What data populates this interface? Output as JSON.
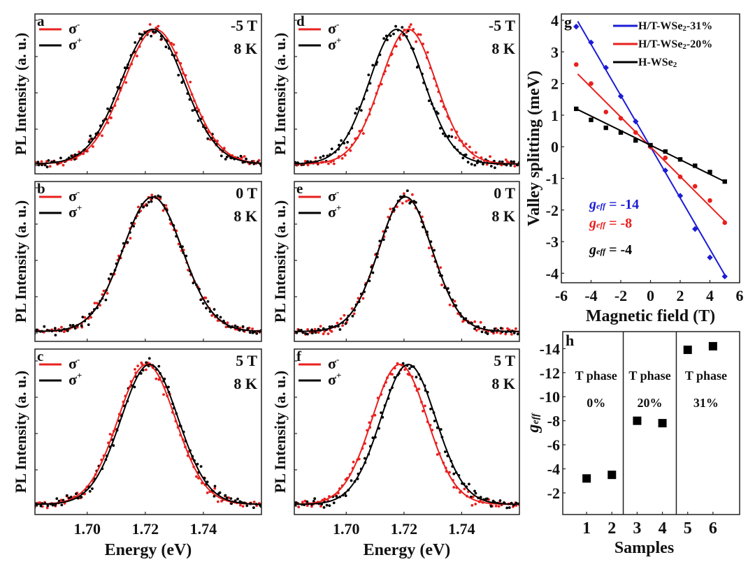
{
  "figure": {
    "pl_panels_common": {
      "ylabel": "PL Intensity (a. u.)",
      "xlabel": "Energy (eV)",
      "xticks": [
        "1.70",
        "1.72",
        "1.74"
      ],
      "xlim": [
        1.682,
        1.76
      ],
      "legend": [
        {
          "label": "σ-",
          "sup": "-",
          "base": "σ",
          "color": "#e8201e"
        },
        {
          "label": "σ+",
          "sup": "+",
          "base": "σ",
          "color": "#000000"
        }
      ]
    }
  },
  "chart_data": [
    {
      "type": "line",
      "panel": "a",
      "field": "-5 T",
      "temp": "8 K",
      "title_label": "a",
      "series": [
        {
          "name": "σ-",
          "center_eV": 1.7235,
          "width_eV": 0.0165,
          "color": "#e8201e"
        },
        {
          "name": "σ+",
          "center_eV": 1.7225,
          "width_eV": 0.0165,
          "color": "#000000"
        }
      ],
      "xlabel": "",
      "ylabel": "PL Intensity (a. u.)",
      "xlim": [
        1.682,
        1.76
      ]
    },
    {
      "type": "line",
      "panel": "b",
      "field": "0 T",
      "temp": "8 K",
      "title_label": "b",
      "series": [
        {
          "name": "σ-",
          "center_eV": 1.7225,
          "width_eV": 0.0155,
          "color": "#e8201e"
        },
        {
          "name": "σ+",
          "center_eV": 1.7225,
          "width_eV": 0.0155,
          "color": "#000000"
        }
      ],
      "xlabel": "",
      "ylabel": "PL Intensity (a. u.)",
      "xlim": [
        1.682,
        1.76
      ]
    },
    {
      "type": "line",
      "panel": "c",
      "field": "5 T",
      "temp": "8 K",
      "title_label": "c",
      "series": [
        {
          "name": "σ-",
          "center_eV": 1.7205,
          "width_eV": 0.015,
          "color": "#e8201e"
        },
        {
          "name": "σ+",
          "center_eV": 1.7215,
          "width_eV": 0.015,
          "color": "#000000"
        }
      ],
      "xlabel": "Energy (eV)",
      "ylabel": "PL Intensity (a. u.)",
      "xlim": [
        1.682,
        1.76
      ],
      "xticks": [
        "1.70",
        "1.72",
        "1.74"
      ]
    },
    {
      "type": "line",
      "panel": "d",
      "field": "-5 T",
      "temp": "8 K",
      "title_label": "d",
      "series": [
        {
          "name": "σ-",
          "center_eV": 1.7215,
          "width_eV": 0.0145,
          "color": "#e8201e"
        },
        {
          "name": "σ+",
          "center_eV": 1.7175,
          "width_eV": 0.0145,
          "color": "#000000"
        }
      ],
      "xlabel": "",
      "ylabel": "PL Intensity (a. u.)",
      "xlim": [
        1.682,
        1.76
      ]
    },
    {
      "type": "line",
      "panel": "e",
      "field": "0 T",
      "temp": "8 K",
      "title_label": "e",
      "series": [
        {
          "name": "σ-",
          "center_eV": 1.7205,
          "width_eV": 0.014,
          "color": "#e8201e"
        },
        {
          "name": "σ+",
          "center_eV": 1.7205,
          "width_eV": 0.014,
          "color": "#000000"
        }
      ],
      "xlabel": "",
      "ylabel": "PL Intensity (a. u.)",
      "xlim": [
        1.682,
        1.76
      ]
    },
    {
      "type": "line",
      "panel": "f",
      "field": "5 T",
      "temp": "8 K",
      "title_label": "f",
      "series": [
        {
          "name": "σ-",
          "center_eV": 1.7185,
          "width_eV": 0.0145,
          "color": "#e8201e"
        },
        {
          "name": "σ+",
          "center_eV": 1.7215,
          "width_eV": 0.0145,
          "color": "#000000"
        }
      ],
      "xlabel": "Energy (eV)",
      "ylabel": "PL Intensity (a. u.)",
      "xlim": [
        1.682,
        1.76
      ],
      "xticks": [
        "1.70",
        "1.72",
        "1.74"
      ]
    },
    {
      "type": "scatter",
      "panel": "g",
      "title_label": "g",
      "xlabel": "Magnetic field (T)",
      "ylabel": "Valley splitting (meV)",
      "xlim": [
        -6,
        6
      ],
      "ylim": [
        -4.3,
        4.2
      ],
      "xticks": [
        -6,
        -4,
        -2,
        0,
        2,
        4,
        6
      ],
      "yticks": [
        -4,
        -3,
        -2,
        -1,
        0,
        1,
        2,
        3,
        4
      ],
      "x": [
        -5,
        -4,
        -3,
        -2,
        -1,
        0,
        1,
        2,
        3,
        4,
        5
      ],
      "series": [
        {
          "name": "H/T-WSe2-31%",
          "base": "H/T-WSe",
          "sub": "2",
          "suffix": "-31%",
          "color": "#1c1cd6",
          "marker": "diamond",
          "values": [
            3.8,
            3.3,
            2.5,
            1.6,
            0.8,
            0.0,
            -0.75,
            -1.55,
            -2.6,
            -3.5,
            -4.1
          ],
          "fit": {
            "slope": -0.81,
            "intercept": 0.0
          },
          "geff": "-14"
        },
        {
          "name": "H/T-WSe2-20%",
          "base": "H/T-WSe",
          "sub": "2",
          "suffix": "-20%",
          "color": "#e8201e",
          "marker": "circle",
          "values": [
            2.6,
            2.0,
            1.1,
            0.9,
            0.45,
            0.0,
            -0.35,
            -0.95,
            -1.25,
            -1.7,
            -2.4
          ],
          "fit": {
            "slope": -0.47,
            "intercept": 0.0
          },
          "geff": "-8"
        },
        {
          "name": "H-WSe2",
          "base": "H-WSe",
          "sub": "2",
          "suffix": "",
          "color": "#000000",
          "marker": "square",
          "values": [
            1.2,
            0.85,
            0.6,
            0.45,
            0.2,
            0.05,
            -0.15,
            -0.4,
            -0.6,
            -0.8,
            -1.1
          ],
          "fit": {
            "slope": -0.23,
            "intercept": 0.05
          },
          "geff": "-4"
        }
      ],
      "annotations": [
        {
          "text_base": "g",
          "text_sub": "eff",
          "text_rest": " = -14",
          "color": "#1c1cd6"
        },
        {
          "text_base": "g",
          "text_sub": "eff",
          "text_rest": " = -8",
          "color": "#e8201e"
        },
        {
          "text_base": "g",
          "text_sub": "eff",
          "text_rest": " = -4",
          "color": "#000000"
        }
      ],
      "legend_position": "top-right"
    },
    {
      "type": "scatter",
      "panel": "h",
      "title_label": "h",
      "xlabel": "Samples",
      "ylabel_base": "g",
      "ylabel_sub": "eff",
      "ylim": [
        0,
        -15
      ],
      "xlim": [
        0,
        7
      ],
      "yticks": [
        -2,
        -4,
        -6,
        -8,
        -10,
        -12,
        -14
      ],
      "xticks": [
        1,
        2,
        3,
        4,
        5,
        6
      ],
      "x": [
        1,
        2,
        3,
        4,
        5,
        6
      ],
      "values": [
        -3.2,
        -3.5,
        -8.0,
        -7.8,
        -13.9,
        -14.2
      ],
      "groups": [
        {
          "label": "T phase",
          "pct": "0%",
          "samples": [
            1,
            2
          ]
        },
        {
          "label": "T phase",
          "pct": "20%",
          "samples": [
            3,
            4
          ]
        },
        {
          "label": "T phase",
          "pct": "31%",
          "samples": [
            5,
            6
          ]
        }
      ],
      "dividers": [
        2.45,
        4.55
      ]
    }
  ]
}
